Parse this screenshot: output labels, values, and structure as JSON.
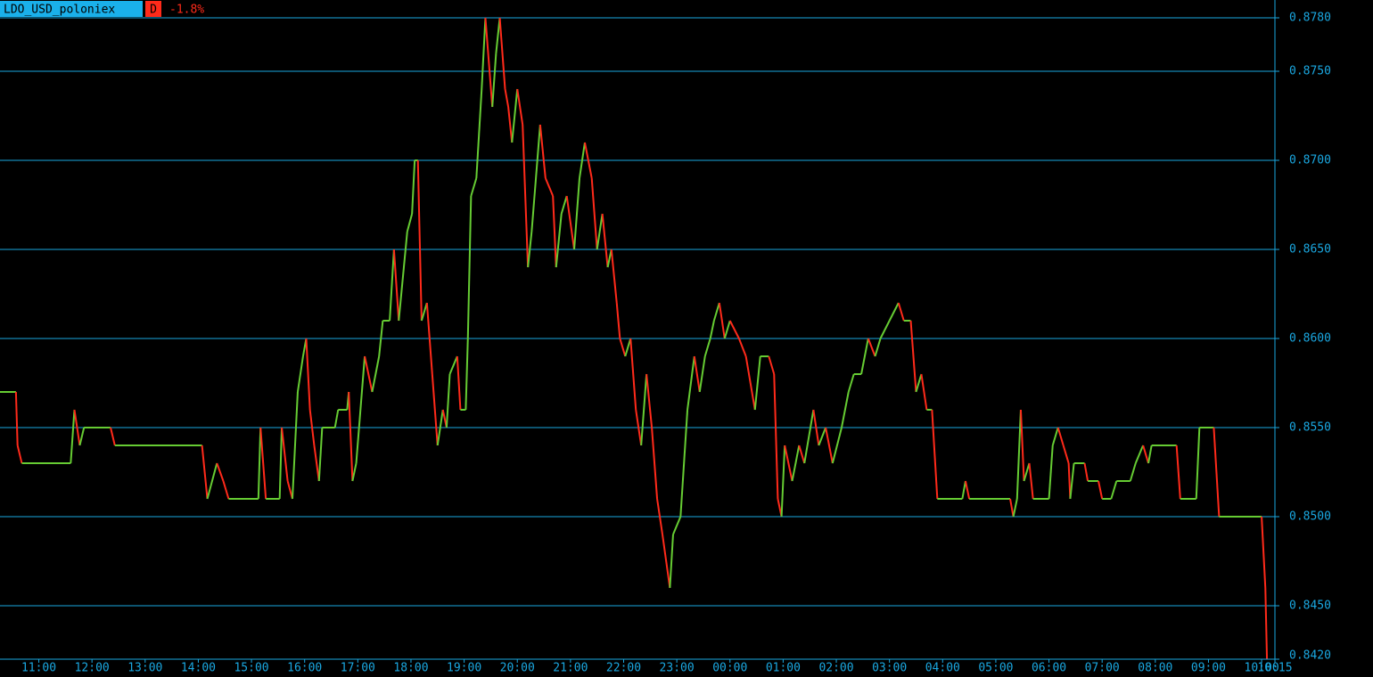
{
  "header": {
    "symbol": "LDO_USD_poloniex",
    "period": "D",
    "change": "-1.8%"
  },
  "chart_data": {
    "type": "line",
    "grid": true,
    "up_color": "#66cc33",
    "down_color": "#ff2a1a",
    "grid_color": "#1aa7e0",
    "xlim": [
      10.27,
      34.25
    ],
    "xticks": [
      {
        "value": 11,
        "label": "11:00"
      },
      {
        "value": 12,
        "label": "12:00"
      },
      {
        "value": 13,
        "label": "13:00"
      },
      {
        "value": 14,
        "label": "14:00"
      },
      {
        "value": 15,
        "label": "15:00"
      },
      {
        "value": 16,
        "label": "16:00"
      },
      {
        "value": 17,
        "label": "17:00"
      },
      {
        "value": 18,
        "label": "18:00"
      },
      {
        "value": 19,
        "label": "19:00"
      },
      {
        "value": 20,
        "label": "20:00"
      },
      {
        "value": 21,
        "label": "21:00"
      },
      {
        "value": 22,
        "label": "22:00"
      },
      {
        "value": 23,
        "label": "23:00"
      },
      {
        "value": 24,
        "label": "00:00"
      },
      {
        "value": 25,
        "label": "01:00"
      },
      {
        "value": 26,
        "label": "02:00"
      },
      {
        "value": 27,
        "label": "03:00"
      },
      {
        "value": 28,
        "label": "04:00"
      },
      {
        "value": 29,
        "label": "05:00"
      },
      {
        "value": 30,
        "label": "06:00"
      },
      {
        "value": 31,
        "label": "07:00"
      },
      {
        "value": 32,
        "label": "08:00"
      },
      {
        "value": 33,
        "label": "09:00"
      },
      {
        "value": 34,
        "label": "10:00"
      },
      {
        "value": 34.25,
        "label": "10:15"
      }
    ],
    "ylim": [
      0.842,
      0.878
    ],
    "yticks": [
      {
        "value": 0.878,
        "label": "0.8780"
      },
      {
        "value": 0.875,
        "label": "0.8750"
      },
      {
        "value": 0.87,
        "label": "0.8700"
      },
      {
        "value": 0.865,
        "label": "0.8650"
      },
      {
        "value": 0.86,
        "label": "0.8600"
      },
      {
        "value": 0.855,
        "label": "0.8550"
      },
      {
        "value": 0.85,
        "label": "0.8500"
      },
      {
        "value": 0.845,
        "label": "0.8450"
      },
      {
        "value": 0.842,
        "label": "0.8420"
      }
    ],
    "x": [
      10.27,
      10.57,
      10.6,
      10.68,
      11.6,
      11.67,
      11.77,
      11.85,
      12.35,
      12.43,
      14.07,
      14.17,
      14.35,
      14.47,
      14.57,
      15.13,
      15.17,
      15.27,
      15.53,
      15.57,
      15.68,
      15.77,
      15.87,
      15.97,
      16.03,
      16.1,
      16.18,
      16.27,
      16.33,
      16.57,
      16.63,
      16.8,
      16.83,
      16.9,
      16.97,
      17.13,
      17.27,
      17.4,
      17.47,
      17.6,
      17.68,
      17.77,
      17.93,
      18.02,
      18.07,
      18.13,
      18.2,
      18.3,
      18.4,
      18.5,
      18.6,
      18.67,
      18.73,
      18.87,
      18.93,
      19.03,
      19.07,
      19.13,
      19.23,
      19.33,
      19.4,
      19.53,
      19.6,
      19.67,
      19.77,
      19.83,
      19.9,
      20.0,
      20.1,
      20.2,
      20.27,
      20.43,
      20.53,
      20.67,
      20.73,
      20.83,
      20.93,
      21.07,
      21.17,
      21.27,
      21.4,
      21.5,
      21.6,
      21.7,
      21.77,
      21.87,
      21.93,
      22.03,
      22.13,
      22.23,
      22.33,
      22.43,
      22.53,
      22.63,
      22.73,
      22.87,
      22.93,
      23.07,
      23.2,
      23.33,
      23.43,
      23.53,
      23.63,
      23.7,
      23.8,
      23.9,
      24.0,
      24.17,
      24.3,
      24.47,
      24.57,
      24.73,
      24.83,
      24.9,
      24.97,
      25.03,
      25.17,
      25.3,
      25.4,
      25.57,
      25.67,
      25.8,
      25.93,
      26.1,
      26.23,
      26.33,
      26.47,
      26.6,
      26.73,
      26.83,
      27.0,
      27.17,
      27.27,
      27.4,
      27.5,
      27.6,
      27.7,
      27.8,
      27.9,
      28.37,
      28.43,
      28.5,
      29.27,
      29.33,
      29.4,
      29.47,
      29.53,
      29.63,
      29.7,
      30.0,
      30.07,
      30.17,
      30.27,
      30.37,
      30.4,
      30.47,
      30.67,
      30.73,
      30.93,
      31.0,
      31.17,
      31.27,
      31.53,
      31.63,
      31.77,
      31.87,
      31.93,
      32.4,
      32.47,
      32.77,
      32.83,
      33.1,
      33.2,
      34.0,
      34.07,
      34.1
    ],
    "series": [
      {
        "name": "LDO_USD_poloniex",
        "values": [
          0.857,
          0.857,
          0.854,
          0.853,
          0.853,
          0.856,
          0.854,
          0.855,
          0.855,
          0.854,
          0.854,
          0.851,
          0.853,
          0.852,
          0.851,
          0.851,
          0.855,
          0.851,
          0.851,
          0.855,
          0.852,
          0.851,
          0.857,
          0.859,
          0.86,
          0.856,
          0.854,
          0.852,
          0.855,
          0.855,
          0.856,
          0.856,
          0.857,
          0.852,
          0.853,
          0.859,
          0.857,
          0.859,
          0.861,
          0.861,
          0.865,
          0.861,
          0.866,
          0.867,
          0.87,
          0.87,
          0.861,
          0.862,
          0.858,
          0.854,
          0.856,
          0.855,
          0.858,
          0.859,
          0.856,
          0.856,
          0.86,
          0.868,
          0.869,
          0.874,
          0.878,
          0.873,
          0.876,
          0.878,
          0.874,
          0.873,
          0.871,
          0.874,
          0.872,
          0.864,
          0.866,
          0.872,
          0.869,
          0.868,
          0.864,
          0.867,
          0.868,
          0.865,
          0.869,
          0.871,
          0.869,
          0.865,
          0.867,
          0.864,
          0.865,
          0.862,
          0.86,
          0.859,
          0.86,
          0.856,
          0.854,
          0.858,
          0.855,
          0.851,
          0.849,
          0.846,
          0.849,
          0.85,
          0.856,
          0.859,
          0.857,
          0.859,
          0.86,
          0.861,
          0.862,
          0.86,
          0.861,
          0.86,
          0.859,
          0.856,
          0.859,
          0.859,
          0.858,
          0.851,
          0.85,
          0.854,
          0.852,
          0.854,
          0.853,
          0.856,
          0.854,
          0.855,
          0.853,
          0.855,
          0.857,
          0.858,
          0.858,
          0.86,
          0.859,
          0.86,
          0.861,
          0.862,
          0.861,
          0.861,
          0.857,
          0.858,
          0.856,
          0.856,
          0.851,
          0.851,
          0.852,
          0.851,
          0.851,
          0.85,
          0.851,
          0.856,
          0.852,
          0.853,
          0.851,
          0.851,
          0.854,
          0.855,
          0.854,
          0.853,
          0.851,
          0.853,
          0.853,
          0.852,
          0.852,
          0.851,
          0.851,
          0.852,
          0.852,
          0.853,
          0.854,
          0.853,
          0.854,
          0.854,
          0.851,
          0.851,
          0.855,
          0.855,
          0.85,
          0.85,
          0.846,
          0.842
        ]
      }
    ]
  }
}
